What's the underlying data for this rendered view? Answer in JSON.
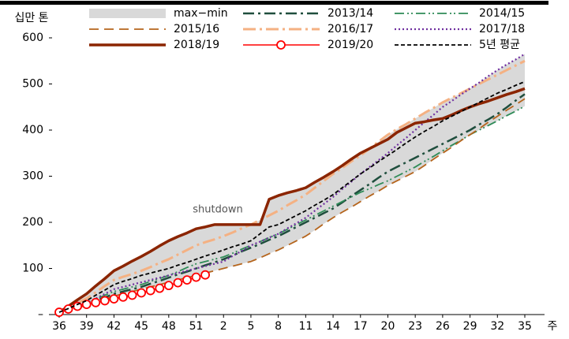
{
  "chart_data": {
    "type": "line",
    "y_label": "십만 톤",
    "x_label": "주",
    "annotation": "shutdown",
    "categories": [
      "36",
      null,
      null,
      "39",
      null,
      null,
      "42",
      null,
      null,
      "45",
      null,
      null,
      "48",
      null,
      null,
      "51",
      null,
      null,
      "2",
      null,
      null,
      "5",
      null,
      null,
      "8",
      null,
      null,
      "11",
      null,
      null,
      "14",
      null,
      null,
      "17",
      null,
      null,
      "20",
      null,
      null,
      "23",
      null,
      null,
      "26",
      null,
      null,
      "29",
      null,
      null,
      "32",
      null,
      null,
      "35"
    ],
    "ylim": [
      0,
      600
    ],
    "yticks": [
      {
        "value": 0,
        "label": "–"
      },
      100,
      200,
      300,
      400,
      500,
      600
    ],
    "band": {
      "name": "max−min",
      "color": "#d9d9d9",
      "max": [
        5,
        18,
        32,
        45,
        62,
        78,
        95,
        105,
        116,
        126,
        137,
        149,
        160,
        169,
        177,
        186,
        190,
        195,
        195,
        195,
        195,
        195,
        205,
        250,
        258,
        264,
        269,
        275,
        287,
        298,
        310,
        323,
        337,
        350,
        360,
        375,
        390,
        402,
        413,
        425,
        437,
        448,
        460,
        470,
        480,
        490,
        503,
        517,
        530,
        542,
        553,
        565
      ],
      "min": [
        5,
        10,
        15,
        20,
        27,
        33,
        40,
        45,
        50,
        55,
        60,
        65,
        70,
        75,
        80,
        85,
        90,
        95,
        100,
        105,
        110,
        115,
        123,
        132,
        140,
        150,
        160,
        170,
        183,
        197,
        210,
        222,
        233,
        245,
        257,
        268,
        280,
        290,
        300,
        310,
        323,
        337,
        350,
        363,
        377,
        390,
        400,
        410,
        420,
        431,
        441,
        452
      ]
    },
    "series": [
      {
        "name": "2013/14",
        "color": "#1f4e3d",
        "dash": "14 5 3 5",
        "width": 2.5,
        "values": [
          5,
          11,
          16,
          22,
          30,
          37,
          45,
          50,
          55,
          60,
          67,
          73,
          80,
          87,
          93,
          100,
          107,
          113,
          120,
          128,
          137,
          145,
          153,
          162,
          170,
          180,
          190,
          200,
          210,
          220,
          230,
          243,
          257,
          270,
          283,
          297,
          310,
          320,
          330,
          340,
          350,
          360,
          370,
          380,
          390,
          400,
          412,
          423,
          435,
          449,
          464,
          478
        ]
      },
      {
        "name": "2014/15",
        "color": "#2e8b57",
        "dash": "12 4 2 3 2 4",
        "width": 1.8,
        "values": [
          5,
          12,
          18,
          25,
          33,
          42,
          50,
          55,
          60,
          65,
          72,
          78,
          85,
          93,
          102,
          110,
          115,
          120,
          125,
          133,
          142,
          150,
          158,
          167,
          175,
          185,
          195,
          205,
          215,
          225,
          235,
          245,
          255,
          265,
          273,
          282,
          290,
          300,
          310,
          320,
          332,
          343,
          355,
          367,
          378,
          390,
          400,
          410,
          420,
          431,
          441,
          452
        ]
      },
      {
        "name": "2015/16",
        "color": "#b5651d",
        "dash": "12 7",
        "width": 1.8,
        "values": [
          5,
          10,
          15,
          20,
          27,
          33,
          40,
          45,
          50,
          55,
          60,
          65,
          70,
          75,
          80,
          85,
          90,
          95,
          100,
          105,
          110,
          115,
          123,
          132,
          140,
          150,
          160,
          170,
          183,
          197,
          210,
          222,
          233,
          245,
          257,
          268,
          280,
          290,
          300,
          310,
          323,
          337,
          350,
          363,
          377,
          390,
          403,
          417,
          430,
          443,
          455,
          468
        ]
      },
      {
        "name": "2016/17",
        "color": "#f4b183",
        "dash": "16 5 3 5",
        "width": 3,
        "values": [
          5,
          15,
          25,
          35,
          48,
          62,
          75,
          82,
          88,
          95,
          103,
          112,
          120,
          130,
          140,
          150,
          157,
          163,
          170,
          178,
          187,
          195,
          205,
          215,
          225,
          237,
          248,
          260,
          275,
          290,
          305,
          318,
          332,
          345,
          360,
          375,
          390,
          402,
          413,
          425,
          437,
          448,
          460,
          470,
          480,
          490,
          500,
          510,
          520,
          530,
          540,
          550
        ]
      },
      {
        "name": "2017/18",
        "color": "#7030a0",
        "dash": "2 3",
        "width": 2.2,
        "values": [
          5,
          12,
          18,
          25,
          35,
          45,
          55,
          60,
          65,
          70,
          75,
          80,
          85,
          90,
          95,
          100,
          105,
          110,
          115,
          127,
          138,
          150,
          158,
          167,
          175,
          187,
          198,
          210,
          225,
          240,
          255,
          272,
          288,
          305,
          320,
          335,
          350,
          367,
          383,
          400,
          417,
          433,
          450,
          463,
          477,
          490,
          503,
          517,
          530,
          542,
          553,
          565
        ]
      },
      {
        "name": "2018/19",
        "color": "#8b2500",
        "dash": "",
        "width": 3.5,
        "values": [
          5,
          18,
          32,
          45,
          62,
          78,
          95,
          105,
          116,
          126,
          137,
          149,
          160,
          169,
          177,
          186,
          190,
          195,
          195,
          195,
          195,
          195,
          195,
          250,
          258,
          264,
          269,
          275,
          287,
          298,
          310,
          323,
          337,
          350,
          360,
          370,
          380,
          395,
          405,
          415,
          418,
          422,
          425,
          433,
          442,
          450,
          457,
          463,
          470,
          477,
          483,
          490
        ]
      },
      {
        "name": "2019/20",
        "color": "#ff0000",
        "dash": "",
        "width": 1.5,
        "marker": "circle",
        "values": [
          5,
          12,
          18,
          22,
          26,
          30,
          34,
          38,
          42,
          47,
          52,
          57,
          63,
          69,
          75,
          81,
          86,
          null,
          null,
          null,
          null,
          null,
          null,
          null,
          null,
          null,
          null,
          null,
          null,
          null,
          null,
          null,
          null,
          null,
          null,
          null,
          null,
          null,
          null,
          null,
          null,
          null,
          null,
          null,
          null,
          null,
          null,
          null,
          null,
          null,
          null,
          null
        ]
      },
      {
        "name": "5년 평균",
        "color": "#000000",
        "dash": "5 3",
        "width": 1.8,
        "values": [
          5,
          13,
          22,
          30,
          42,
          53,
          65,
          72,
          78,
          85,
          90,
          95,
          100,
          107,
          113,
          120,
          127,
          133,
          140,
          147,
          153,
          160,
          175,
          190,
          195,
          205,
          215,
          225,
          237,
          248,
          260,
          275,
          290,
          305,
          318,
          332,
          345,
          358,
          372,
          385,
          397,
          408,
          420,
          430,
          440,
          450,
          460,
          470,
          480,
          488,
          497,
          505
        ]
      }
    ]
  }
}
